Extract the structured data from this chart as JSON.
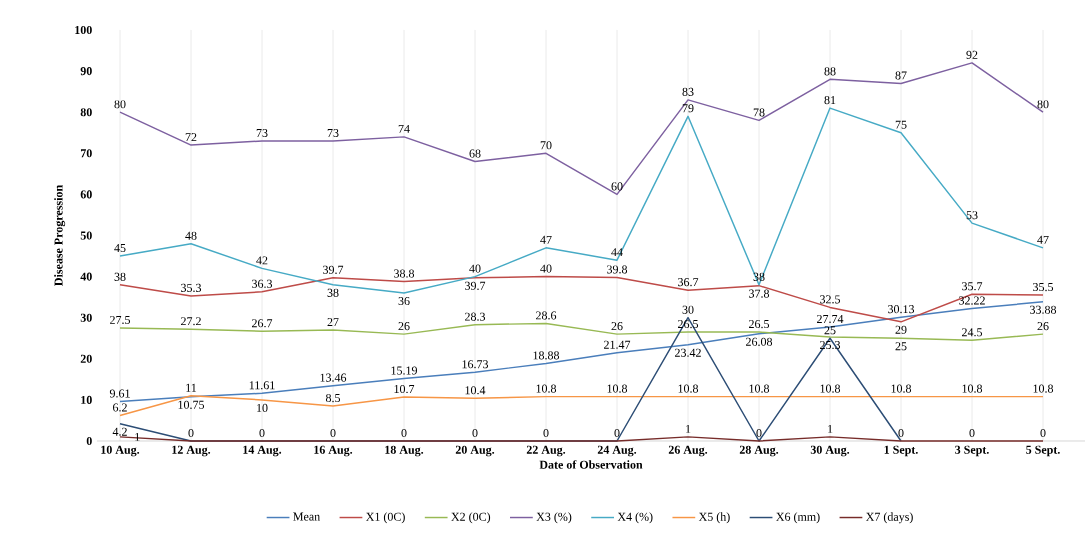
{
  "chart_data": {
    "type": "line",
    "xlabel": "Date of Observation",
    "ylabel": "Disease Progression",
    "categories": [
      "10 Aug.",
      "12 Aug.",
      "14 Aug.",
      "16 Aug.",
      "18 Aug.",
      "20 Aug.",
      "22 Aug.",
      "24 Aug.",
      "26 Aug.",
      "28 Aug.",
      "30 Aug.",
      "1 Sept.",
      "3 Sept.",
      "5 Sept."
    ],
    "series": [
      {
        "name": "Mean",
        "color": "#4a7ebb",
        "values": [
          9.61,
          10.75,
          11.61,
          13.46,
          15.19,
          16.73,
          18.88,
          21.47,
          23.42,
          26.08,
          27.74,
          30.13,
          32.22,
          33.88
        ]
      },
      {
        "name": "X1  (0C)",
        "color": "#be4b48",
        "values": [
          38,
          35.3,
          36.3,
          39.7,
          38.8,
          39.7,
          40,
          39.8,
          36.7,
          37.8,
          32.5,
          29,
          35.7,
          35.5
        ]
      },
      {
        "name": "X2  (0C)",
        "color": "#98b954",
        "values": [
          27.5,
          27.2,
          26.7,
          27,
          26,
          28.3,
          28.6,
          26,
          26.5,
          26.5,
          25.3,
          25,
          24.5,
          26
        ]
      },
      {
        "name": "X3 (%)",
        "color": "#7d60a0",
        "values": [
          80,
          72,
          73,
          73,
          74,
          68,
          70,
          60,
          83,
          78,
          88,
          87,
          92,
          80
        ]
      },
      {
        "name": "X4 (%)",
        "color": "#46aac5",
        "values": [
          45,
          48,
          42,
          38,
          36,
          40,
          47,
          44,
          79,
          38,
          81,
          75,
          53,
          47
        ]
      },
      {
        "name": "X5  (h)",
        "color": "#f79646",
        "values": [
          6.2,
          11,
          10,
          8.5,
          10.7,
          10.4,
          10.8,
          10.8,
          10.8,
          10.8,
          10.8,
          10.8,
          10.8,
          10.8
        ]
      },
      {
        "name": "X6  (mm)",
        "color": "#2c4d75",
        "values": [
          4.2,
          0,
          0,
          0,
          0,
          0,
          0,
          0,
          30,
          0,
          25,
          0,
          null,
          null
        ]
      },
      {
        "name": "X7  (days)",
        "color": "#772c2a",
        "values": [
          1,
          0,
          0,
          0,
          0,
          0,
          0,
          0,
          1,
          0,
          1,
          0,
          0,
          0
        ],
        "value_labels": [
          "1",
          null,
          null,
          null,
          null,
          null,
          null,
          null,
          "1",
          null,
          "1",
          null,
          "0",
          "0"
        ]
      }
    ],
    "ylim": [
      0,
      100
    ],
    "yticks": [
      0,
      10,
      20,
      30,
      40,
      50,
      60,
      70,
      80,
      90,
      100
    ],
    "grid": "x",
    "legend": "bottom",
    "data_labels": true,
    "marker": "none"
  }
}
